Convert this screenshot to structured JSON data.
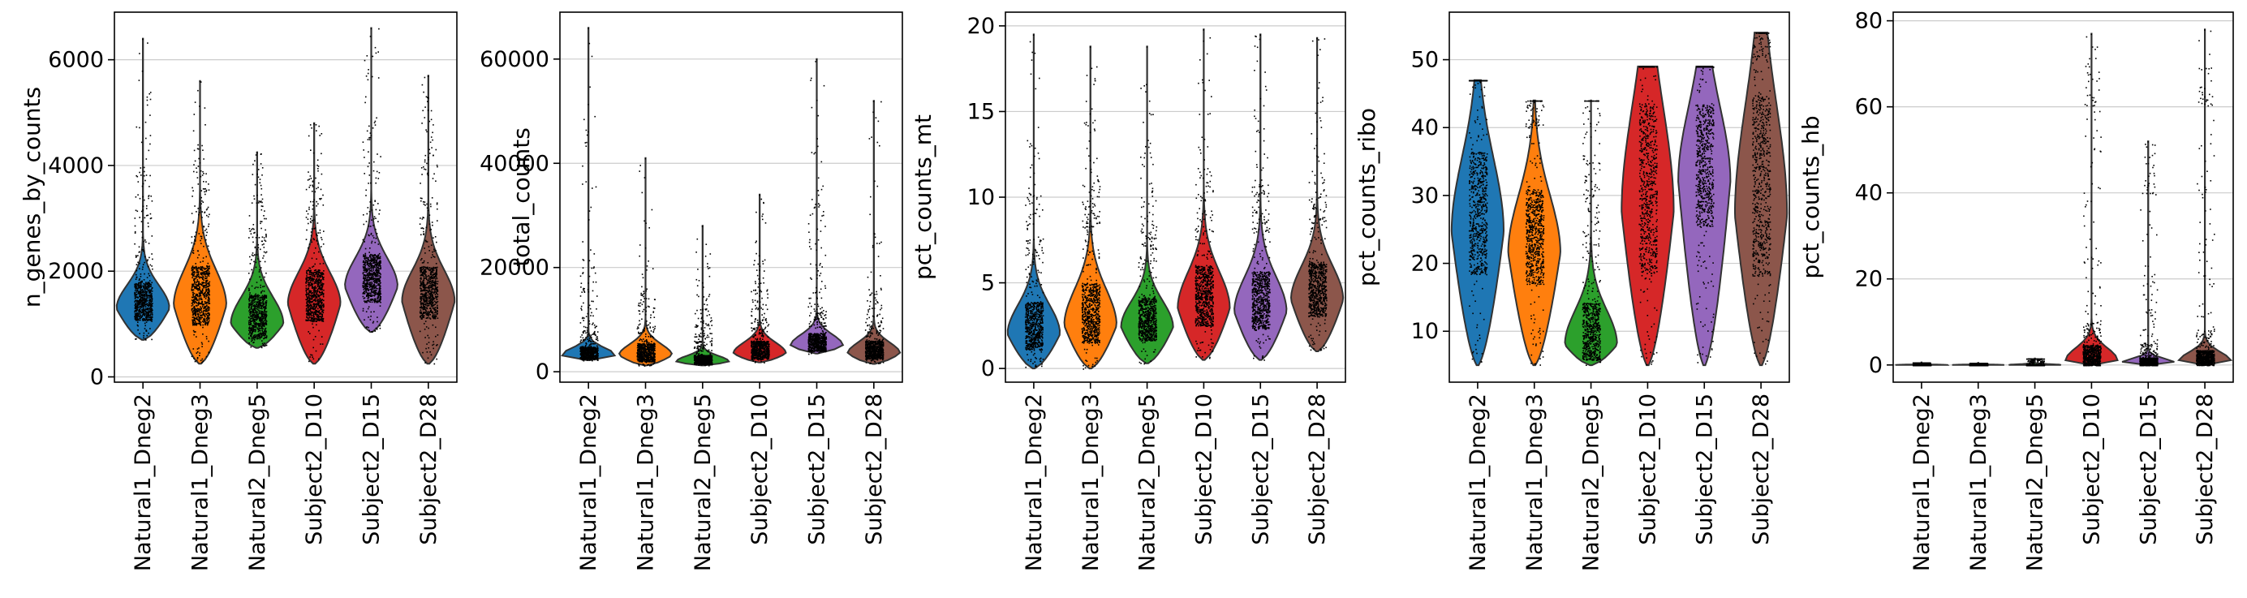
{
  "categories": [
    "Natural1_Dneg2",
    "Natural1_Dneg3",
    "Natural2_Dneg5",
    "Subject2_D10",
    "Subject2_D15",
    "Subject2_D28"
  ],
  "colors": [
    "#1f77b4",
    "#ff7f0e",
    "#2ca02c",
    "#d62728",
    "#9467bd",
    "#8c564b"
  ],
  "chart_data": [
    {
      "type": "violin",
      "ylabel": "n_genes_by_counts",
      "ylim": [
        -100,
        6900
      ],
      "yticks": [
        0,
        2000,
        4000,
        6000
      ],
      "grid": true,
      "series": [
        {
          "min": 700,
          "q1": 1180,
          "median": 1400,
          "q3": 1700,
          "max": 6400,
          "bulk_top": 2400,
          "cap_top": 3800
        },
        {
          "min": 250,
          "q1": 1150,
          "median": 1550,
          "q3": 1950,
          "max": 5600,
          "bulk_top": 2600,
          "cap_top": 3800
        },
        {
          "min": 550,
          "q1": 850,
          "median": 1150,
          "q3": 1450,
          "max": 4250,
          "bulk_top": 2300,
          "cap_top": 3300
        },
        {
          "min": 250,
          "q1": 1200,
          "median": 1550,
          "q3": 1900,
          "max": 4800,
          "bulk_top": 2600,
          "cap_top": 3600
        },
        {
          "min": 850,
          "q1": 1550,
          "median": 1850,
          "q3": 2200,
          "max": 6600,
          "bulk_top": 3000,
          "cap_top": 4500
        },
        {
          "min": 250,
          "q1": 1250,
          "median": 1600,
          "q3": 1950,
          "max": 5700,
          "bulk_top": 2800,
          "cap_top": 4200
        }
      ]
    },
    {
      "type": "violin",
      "ylabel": "total_counts",
      "ylim": [
        -2000,
        69000
      ],
      "yticks": [
        0,
        20000,
        40000,
        60000
      ],
      "grid": true,
      "series": [
        {
          "min": 2200,
          "q1": 2800,
          "median": 3500,
          "q3": 4500,
          "max": 66000,
          "bulk_top": 8000,
          "cap_top": 20000
        },
        {
          "min": 1200,
          "q1": 2500,
          "median": 3800,
          "q3": 5000,
          "max": 41000,
          "bulk_top": 8000,
          "cap_top": 14000
        },
        {
          "min": 1200,
          "q1": 1700,
          "median": 2200,
          "q3": 3000,
          "max": 28000,
          "bulk_top": 6000,
          "cap_top": 12000
        },
        {
          "min": 1800,
          "q1": 3000,
          "median": 4000,
          "q3": 5500,
          "max": 34000,
          "bulk_top": 10000,
          "cap_top": 17000
        },
        {
          "min": 3500,
          "q1": 4500,
          "median": 5500,
          "q3": 7000,
          "max": 60000,
          "bulk_top": 12000,
          "cap_top": 30000
        },
        {
          "min": 1500,
          "q1": 3000,
          "median": 4000,
          "q3": 5500,
          "max": 52000,
          "bulk_top": 9000,
          "cap_top": 15000
        }
      ]
    },
    {
      "type": "violin",
      "ylabel": "pct_counts_mt",
      "ylim": [
        -0.8,
        20.8
      ],
      "yticks": [
        0,
        5,
        10,
        15,
        20
      ],
      "grid": true,
      "series": [
        {
          "min": 0,
          "q1": 1.5,
          "median": 2.5,
          "q3": 3.5,
          "max": 19.5,
          "bulk_top": 6.5,
          "cap_top": 10
        },
        {
          "min": 0,
          "q1": 2.0,
          "median": 3.0,
          "q3": 4.5,
          "max": 18.8,
          "bulk_top": 8.5,
          "cap_top": 11
        },
        {
          "min": 0.3,
          "q1": 2.0,
          "median": 2.8,
          "q3": 3.8,
          "max": 18.8,
          "bulk_top": 7,
          "cap_top": 10
        },
        {
          "min": 0.5,
          "q1": 3.0,
          "median": 4.0,
          "q3": 5.5,
          "max": 19.8,
          "bulk_top": 8,
          "cap_top": 11
        },
        {
          "min": 0.5,
          "q1": 2.8,
          "median": 3.8,
          "q3": 5.2,
          "max": 19.5,
          "bulk_top": 8,
          "cap_top": 11
        },
        {
          "min": 1.0,
          "q1": 3.5,
          "median": 4.5,
          "q3": 5.8,
          "max": 19.3,
          "bulk_top": 8.5,
          "cap_top": 11
        }
      ]
    },
    {
      "type": "violin",
      "ylabel": "pct_counts_ribo",
      "ylim": [
        2.5,
        57
      ],
      "yticks": [
        10,
        20,
        30,
        40,
        50
      ],
      "grid": true,
      "series": [
        {
          "min": 5,
          "q1": 21,
          "median": 28,
          "q3": 34,
          "max": 47,
          "bulk_top": 47,
          "cap_top": 47
        },
        {
          "min": 5,
          "q1": 19,
          "median": 24,
          "q3": 29,
          "max": 44,
          "bulk_top": 40,
          "cap_top": 44
        },
        {
          "min": 5,
          "q1": 7,
          "median": 9,
          "q3": 13,
          "max": 44,
          "bulk_top": 30,
          "cap_top": 44
        },
        {
          "min": 5,
          "q1": 22,
          "median": 33,
          "q3": 40,
          "max": 49,
          "bulk_top": 49,
          "cap_top": 49
        },
        {
          "min": 5,
          "q1": 28,
          "median": 36,
          "q3": 41,
          "max": 49,
          "bulk_top": 49,
          "cap_top": 49
        },
        {
          "min": 5,
          "q1": 22,
          "median": 32,
          "q3": 41,
          "max": 54,
          "bulk_top": 50,
          "cap_top": 54
        }
      ]
    },
    {
      "type": "violin",
      "ylabel": "pct_counts_hb",
      "ylim": [
        -4,
        82
      ],
      "yticks": [
        0,
        20,
        40,
        60,
        80
      ],
      "grid": true,
      "series": [
        {
          "min": 0,
          "q1": 0,
          "median": 0,
          "q3": 0.1,
          "max": 0.6,
          "bulk_top": 0.6,
          "cap_top": 0.6
        },
        {
          "min": 0,
          "q1": 0,
          "median": 0,
          "q3": 0.1,
          "max": 0.5,
          "bulk_top": 0.5,
          "cap_top": 0.5
        },
        {
          "min": 0,
          "q1": 0,
          "median": 0,
          "q3": 0.1,
          "max": 1.5,
          "bulk_top": 1.5,
          "cap_top": 1.5
        },
        {
          "min": 0,
          "q1": 0.5,
          "median": 1.5,
          "q3": 4,
          "max": 77,
          "bulk_top": 10,
          "cap_top": 60
        },
        {
          "min": 0,
          "q1": 0.2,
          "median": 0.5,
          "q3": 1.5,
          "max": 52,
          "bulk_top": 5,
          "cap_top": 40
        },
        {
          "min": 0,
          "q1": 0.5,
          "median": 1.2,
          "q3": 3,
          "max": 78,
          "bulk_top": 8,
          "cap_top": 60
        }
      ]
    }
  ]
}
